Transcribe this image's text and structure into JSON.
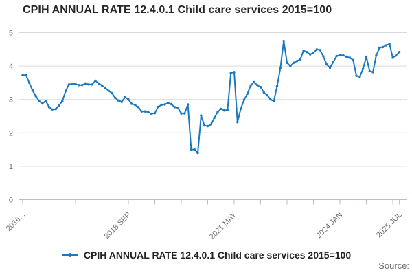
{
  "title": "CPIH ANNUAL RATE 12.4.0.1 Child care services 2015=100",
  "legend": {
    "label": "CPIH ANNUAL RATE 12.4.0.1 Child care services 2015=100"
  },
  "source_label": "Source:",
  "colors": {
    "line": "#1a78be",
    "grid": "#d9d9d9",
    "axis": "#b4bfca",
    "tick_text": "#707070",
    "title_text": "#262626"
  },
  "chart_data": {
    "type": "line",
    "title": "CPIH ANNUAL RATE 12.4.0.1 Child care services 2015=100",
    "frequency": "monthly",
    "x_start": "2016 JAN",
    "x_end": "2025 JUL",
    "x_tick_labels": [
      "2016...",
      "2018 SEP",
      "2021 MAY",
      "2024 JAN",
      "2025 JUL"
    ],
    "x_tick_month_indices": [
      0,
      32,
      64,
      96,
      114
    ],
    "minor_tick_every_months": 8,
    "y_ticks": [
      0,
      1,
      2,
      3,
      4,
      5
    ],
    "ylim": [
      0,
      5
    ],
    "grid": "horizontal",
    "legend_position": "bottom-center",
    "markers": true,
    "series": [
      {
        "name": "CPIH ANNUAL RATE 12.4.0.1 Child care services 2015=100",
        "values": [
          3.73,
          3.73,
          3.5,
          3.27,
          3.1,
          2.95,
          2.88,
          2.96,
          2.77,
          2.7,
          2.71,
          2.82,
          2.95,
          3.25,
          3.45,
          3.47,
          3.46,
          3.43,
          3.43,
          3.48,
          3.45,
          3.45,
          3.56,
          3.48,
          3.42,
          3.35,
          3.26,
          3.19,
          3.05,
          2.97,
          2.93,
          3.07,
          3.0,
          2.87,
          2.84,
          2.77,
          2.64,
          2.64,
          2.62,
          2.57,
          2.59,
          2.78,
          2.84,
          2.85,
          2.9,
          2.86,
          2.77,
          2.75,
          2.58,
          2.58,
          2.85,
          1.5,
          1.5,
          1.4,
          2.52,
          2.22,
          2.2,
          2.25,
          2.45,
          2.62,
          2.72,
          2.67,
          2.69,
          3.79,
          3.82,
          2.32,
          2.72,
          2.99,
          3.17,
          3.42,
          3.52,
          3.43,
          3.37,
          3.21,
          3.13,
          3.0,
          2.95,
          3.4,
          3.95,
          4.75,
          4.1,
          4.0,
          4.1,
          4.15,
          4.2,
          4.46,
          4.42,
          4.35,
          4.4,
          4.5,
          4.48,
          4.29,
          4.05,
          3.95,
          4.12,
          4.3,
          4.33,
          4.32,
          4.28,
          4.25,
          4.18,
          3.71,
          3.68,
          3.92,
          4.28,
          3.85,
          3.82,
          4.32,
          4.55,
          4.57,
          4.62,
          4.66,
          4.25,
          4.32,
          4.42
        ]
      }
    ]
  }
}
